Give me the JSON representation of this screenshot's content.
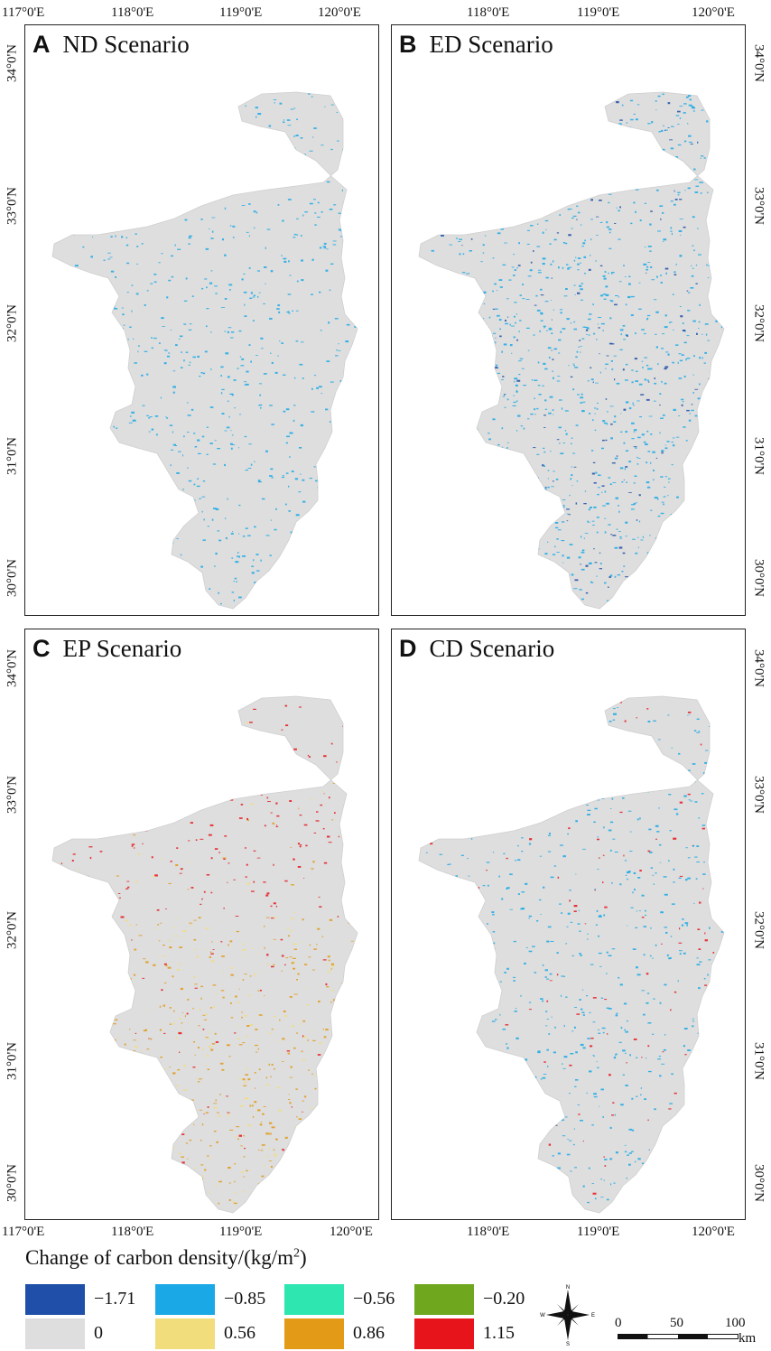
{
  "axes": {
    "lon_ticks": [
      "117°0'E",
      "118°0'E",
      "119°0'E",
      "120°0'E"
    ],
    "lat_ticks": [
      "34°0'N",
      "33°0'N",
      "32°0'N",
      "31°0'N",
      "30°0'N"
    ]
  },
  "panels": [
    {
      "letter": "A",
      "title": "ND Scenario"
    },
    {
      "letter": "B",
      "title": "ED Scenario"
    },
    {
      "letter": "C",
      "title": "EP Scenario"
    },
    {
      "letter": "D",
      "title": "CD Scenario"
    }
  ],
  "legend": {
    "title_main": "Change of carbon density/(kg/m",
    "title_sup": "2",
    "title_end": ")",
    "items": [
      {
        "label": "−1.71",
        "color": "#1f4fa8"
      },
      {
        "label": "−0.85",
        "color": "#1aa9e6"
      },
      {
        "label": "−0.56",
        "color": "#2ee6b0"
      },
      {
        "label": "−0.20",
        "color": "#6fa81e"
      },
      {
        "label": "0",
        "color": "#dedede"
      },
      {
        "label": "0.56",
        "color": "#f1dd7c"
      },
      {
        "label": "0.86",
        "color": "#e29a17"
      },
      {
        "label": "1.15",
        "color": "#e8141b"
      }
    ]
  },
  "north_arrow": {
    "n": "N",
    "s": "S",
    "e": "E",
    "w": "W"
  },
  "scale_bar": {
    "labels": [
      "0",
      "50",
      "100"
    ],
    "unit": "km"
  }
}
